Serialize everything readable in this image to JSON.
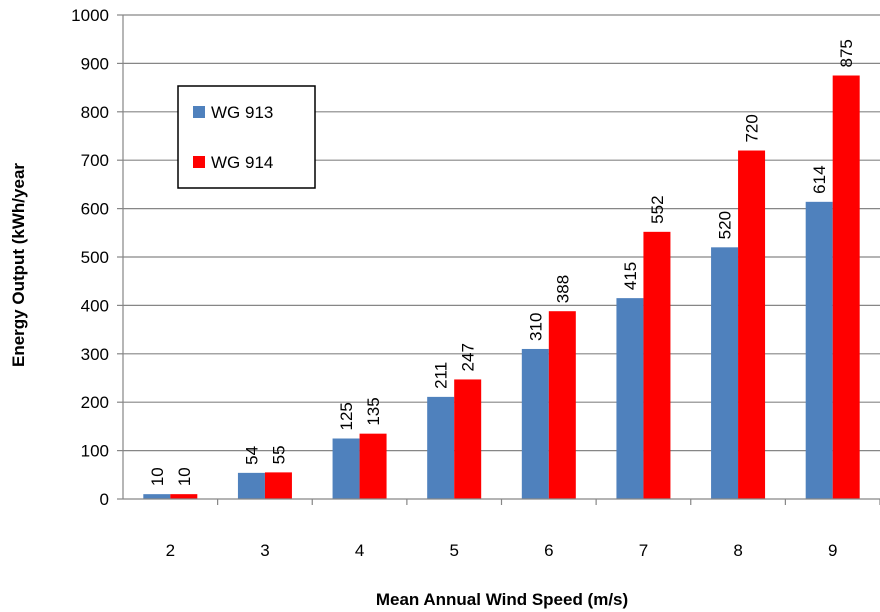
{
  "chart_data": {
    "type": "bar",
    "title": "",
    "xlabel": "Mean Annual Wind Speed (m/s)",
    "ylabel": "Energy Output (kWh/year",
    "categories": [
      "2",
      "3",
      "4",
      "5",
      "6",
      "7",
      "8",
      "9"
    ],
    "series": [
      {
        "name": "WG 913",
        "color": "#4f81bd",
        "values": [
          10,
          54,
          125,
          211,
          310,
          415,
          520,
          614
        ]
      },
      {
        "name": "WG 914",
        "color": "#ff0000",
        "values": [
          10,
          55,
          135,
          247,
          388,
          552,
          720,
          875
        ]
      }
    ],
    "ylim": [
      0,
      1000
    ],
    "yticks": [
      "0",
      "100",
      "200",
      "300",
      "400",
      "500",
      "600",
      "700",
      "800",
      "900",
      "1000"
    ],
    "grid": true,
    "legend_position": "top-left"
  }
}
